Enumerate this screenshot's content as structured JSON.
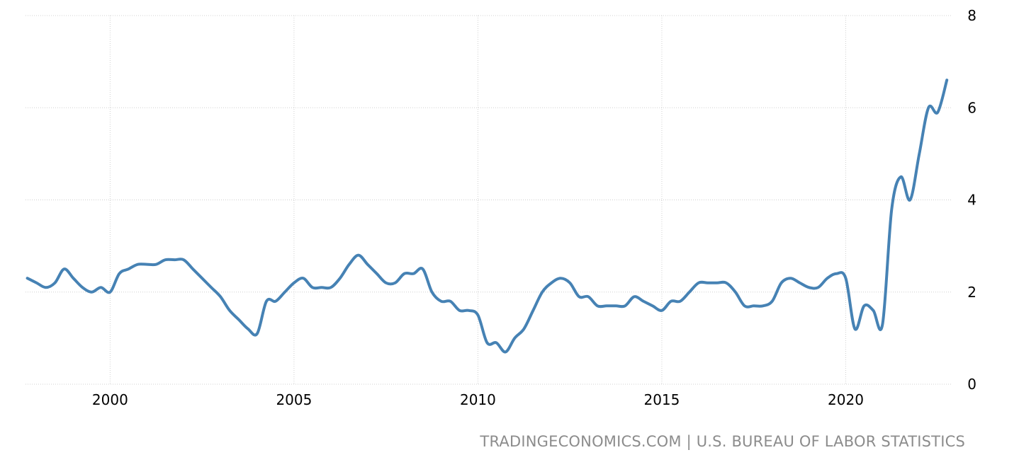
{
  "source_text": "TRADINGECONOMICS.COM | U.S. BUREAU OF LABOR STATISTICS",
  "colors": {
    "line": "#4682b4",
    "grid": "#d0d0d0",
    "source": "#8c8c8c"
  },
  "chart_data": {
    "type": "line",
    "title": "",
    "xlabel": "",
    "ylabel": "",
    "xlim": [
      1997.7,
      2022.9
    ],
    "ylim": [
      0,
      8
    ],
    "grid": true,
    "legend": "none",
    "x_ticks": [
      2000,
      2005,
      2010,
      2015,
      2020
    ],
    "x_tick_labels": [
      "2000",
      "2005",
      "2010",
      "2015",
      "2020"
    ],
    "y_ticks": [
      0,
      2,
      4,
      6,
      8
    ],
    "y_tick_labels": [
      "0",
      "2",
      "4",
      "6",
      "8"
    ],
    "series": [
      {
        "x": [
          1997.75,
          1998.0,
          1998.25,
          1998.5,
          1998.75,
          1999.0,
          1999.25,
          1999.5,
          1999.75,
          2000.0,
          2000.25,
          2000.5,
          2000.75,
          2001.0,
          2001.25,
          2001.5,
          2001.75,
          2002.0,
          2002.25,
          2002.5,
          2002.75,
          2003.0,
          2003.25,
          2003.5,
          2003.75,
          2004.0,
          2004.25,
          2004.5,
          2004.75,
          2005.0,
          2005.25,
          2005.5,
          2005.75,
          2006.0,
          2006.25,
          2006.5,
          2006.75,
          2007.0,
          2007.25,
          2007.5,
          2007.75,
          2008.0,
          2008.25,
          2008.5,
          2008.75,
          2009.0,
          2009.25,
          2009.5,
          2009.75,
          2010.0,
          2010.25,
          2010.5,
          2010.75,
          2011.0,
          2011.25,
          2011.5,
          2011.75,
          2012.0,
          2012.25,
          2012.5,
          2012.75,
          2013.0,
          2013.25,
          2013.5,
          2013.75,
          2014.0,
          2014.25,
          2014.5,
          2014.75,
          2015.0,
          2015.25,
          2015.5,
          2015.75,
          2016.0,
          2016.25,
          2016.5,
          2016.75,
          2017.0,
          2017.25,
          2017.5,
          2017.75,
          2018.0,
          2018.25,
          2018.5,
          2018.75,
          2019.0,
          2019.25,
          2019.5,
          2019.75,
          2020.0,
          2020.25,
          2020.5,
          2020.75,
          2021.0,
          2021.25,
          2021.5,
          2021.75,
          2022.0,
          2022.25,
          2022.5,
          2022.75
        ],
        "values": [
          2.3,
          2.2,
          2.1,
          2.2,
          2.5,
          2.3,
          2.1,
          2.0,
          2.1,
          2.0,
          2.4,
          2.5,
          2.6,
          2.6,
          2.6,
          2.7,
          2.7,
          2.7,
          2.5,
          2.3,
          2.1,
          1.9,
          1.6,
          1.4,
          1.2,
          1.1,
          1.8,
          1.8,
          2.0,
          2.2,
          2.3,
          2.1,
          2.1,
          2.1,
          2.3,
          2.6,
          2.8,
          2.6,
          2.4,
          2.2,
          2.2,
          2.4,
          2.4,
          2.5,
          2.0,
          1.8,
          1.8,
          1.6,
          1.6,
          1.5,
          0.9,
          0.9,
          0.7,
          1.0,
          1.2,
          1.6,
          2.0,
          2.2,
          2.3,
          2.2,
          1.9,
          1.9,
          1.7,
          1.7,
          1.7,
          1.7,
          1.9,
          1.8,
          1.7,
          1.6,
          1.8,
          1.8,
          2.0,
          2.2,
          2.2,
          2.2,
          2.2,
          2.0,
          1.7,
          1.7,
          1.7,
          1.8,
          2.2,
          2.3,
          2.2,
          2.1,
          2.1,
          2.3,
          2.4,
          2.3,
          1.2,
          1.7,
          1.6,
          1.3,
          3.8,
          4.5,
          4.0,
          5.0,
          6.0,
          5.9,
          6.6
        ]
      }
    ]
  }
}
